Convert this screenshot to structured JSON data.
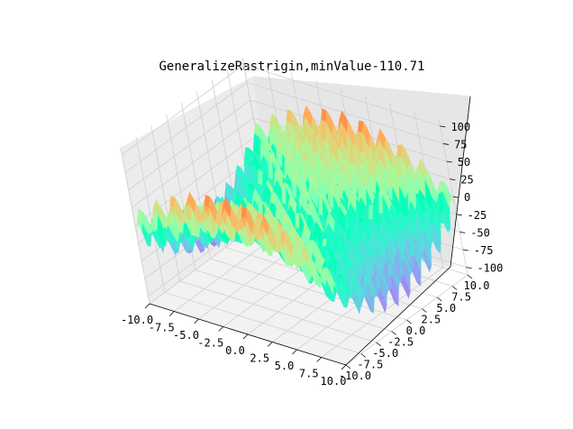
{
  "chart_data": {
    "type": "surface3d",
    "title": "GeneralizeRastrigin,minValue-110.71",
    "colormap": "rainbow",
    "grid": true,
    "xlim": [
      -10,
      10
    ],
    "ylim": [
      -10,
      10
    ],
    "zlim": [
      -110.71,
      110
    ],
    "x_ticks": [
      "-10.0",
      "-7.5",
      "-5.0",
      "-2.5",
      "0.0",
      "2.5",
      "5.0",
      "7.5",
      "10.0"
    ],
    "y_ticks": [
      "-10.0",
      "-7.5",
      "-5.0",
      "-2.5",
      "0.0",
      "2.5",
      "5.0",
      "7.5",
      "10.0"
    ],
    "z_ticks": [
      "-100",
      "-75",
      "-50",
      "-25",
      "0",
      "25",
      "50",
      "75",
      "100"
    ],
    "surface": {
      "grid_x": [
        -10,
        -7.5,
        -5,
        -2.5,
        0,
        2.5,
        5,
        7.5,
        10
      ],
      "grid_y": [
        -10,
        -7.5,
        -5,
        -2.5,
        0,
        2.5,
        5,
        7.5,
        10
      ],
      "z_min": -110.71,
      "z_max": 110
    }
  }
}
